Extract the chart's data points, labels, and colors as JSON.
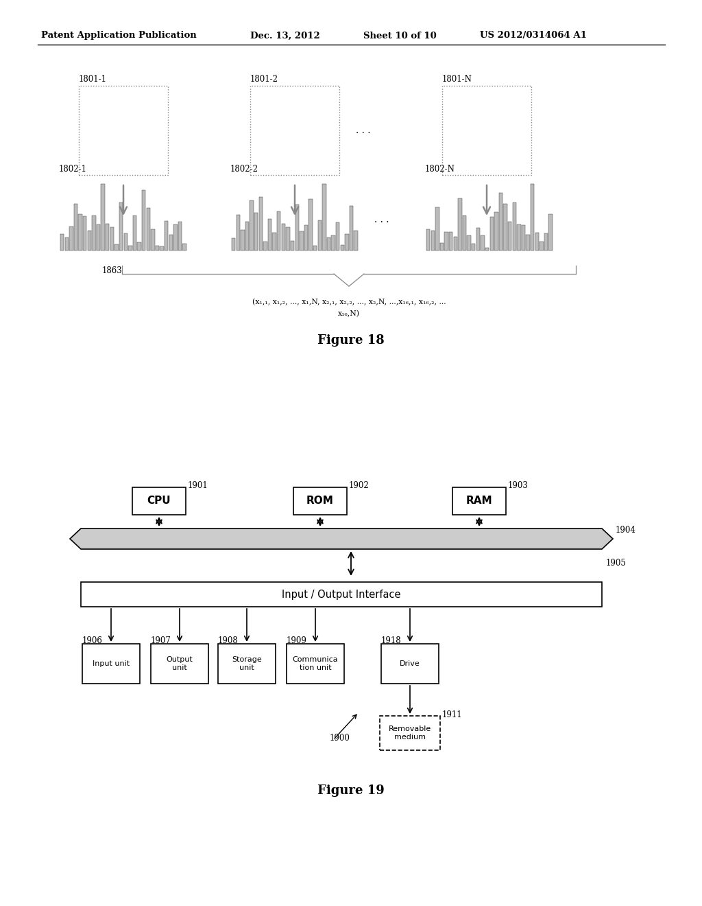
{
  "bg_color": "#ffffff",
  "header_text": "Patent Application Publication",
  "header_date": "Dec. 13, 2012",
  "header_sheet": "Sheet 10 of 10",
  "header_patent": "US 2012/0314064 A1",
  "fig18_title": "Figure 18",
  "fig19_title": "Figure 19",
  "box1_label": "1801-1",
  "box2_label": "1801-2",
  "box3_label": "1801-N",
  "hist1_label": "1802-1",
  "hist2_label": "1802-2",
  "hist3_label": "1802-N",
  "brace_label": "1863",
  "formula_line1": "(x₁,₁, x₁,₂, ..., x₁,N, x₂,₁, x₂,₂, ..., x₂,N, ...,x₁₆,₁, x₁₆,₂, ...",
  "formula_line2": "x₁₆,N)",
  "dots": ". . .",
  "cpu_label": "CPU",
  "rom_label": "ROM",
  "ram_label": "RAM",
  "cpu_ref": "1901",
  "rom_ref": "1902",
  "ram_ref": "1903",
  "bus_ref": "1904",
  "io_ref": "1905",
  "io_label": "Input / Output Interface",
  "input_label": "Input unit",
  "output_label": "Output\nunit",
  "storage_label": "Storage\nunit",
  "comm_label": "Communica\ntion unit",
  "drive_label": "Drive",
  "removable_label": "Removable\nmedium",
  "input_ref": "1906",
  "output_ref": "1907",
  "storage_ref": "1908",
  "comm_ref": "1909",
  "drive_ref": "1918",
  "removable_ref": "1911",
  "system_ref": "1900"
}
